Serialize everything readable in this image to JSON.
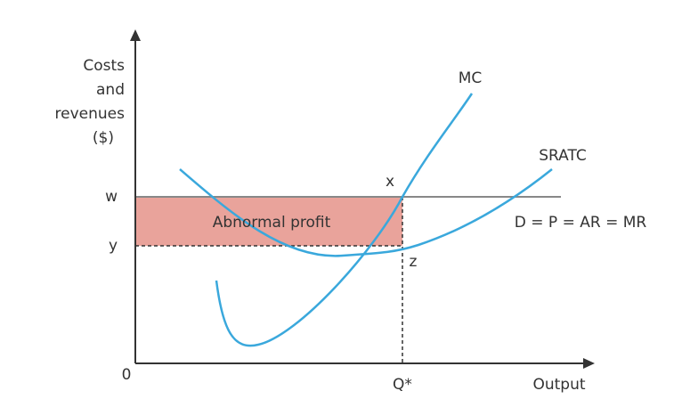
{
  "y_axis_label": [
    "Costs",
    "and",
    "revenues",
    "($)"
  ],
  "x_axis_label": "Output",
  "origin": "0",
  "levels": {
    "w": "w",
    "y": "y"
  },
  "quantity": "Q*",
  "curves": {
    "mc": "MC",
    "sratc": "SRATC",
    "demand": "D = P = AR = MR"
  },
  "points": {
    "x": "x",
    "z": "z"
  },
  "area": "Abnormal profit"
}
